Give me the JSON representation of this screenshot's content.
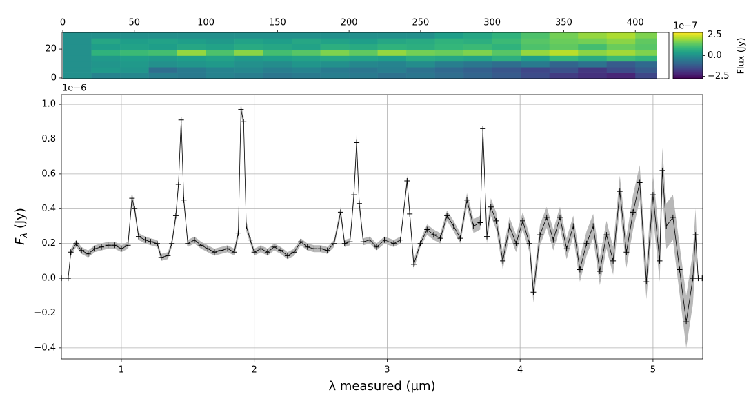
{
  "chart_data": [
    {
      "type": "heatmap",
      "colormap": "viridis",
      "xlim": [
        -0.5,
        423.5
      ],
      "ylim": [
        -0.5,
        31.5
      ],
      "xticks": [
        0,
        50,
        100,
        150,
        200,
        250,
        300,
        350,
        400
      ],
      "yticks": [
        0,
        20
      ],
      "xbins": [
        0,
        20,
        40,
        60,
        80,
        100,
        120,
        140,
        160,
        180,
        200,
        220,
        240,
        260,
        280,
        300,
        320,
        340,
        360,
        380,
        400,
        415
      ],
      "ybins": [
        -0.5,
        3.5,
        7.5,
        11.5,
        15.5,
        19.5,
        23.5,
        27.5,
        31.5
      ],
      "values": [
        [
          0,
          -0.3,
          -0.2,
          -0.4,
          -0.5,
          -0.3,
          -0.4,
          -0.6,
          -0.5,
          -0.4,
          -0.5,
          -0.7,
          -0.6,
          -0.8,
          -1.0,
          -1.2,
          -1.5,
          -1.8,
          -2.0,
          -2.2,
          -1.6
        ],
        [
          0,
          0.2,
          0.1,
          -0.8,
          -0.5,
          -0.3,
          -0.2,
          -0.4,
          -0.3,
          -0.5,
          -0.6,
          -0.4,
          -0.7,
          -0.9,
          -1.1,
          -1.3,
          -1.6,
          -1.4,
          -1.9,
          -1.5,
          -1.2
        ],
        [
          0,
          0.1,
          0.2,
          0.0,
          0.1,
          0.2,
          0.0,
          -0.1,
          0.1,
          0.0,
          -0.2,
          -0.3,
          -0.1,
          -0.4,
          -0.6,
          -0.8,
          -0.5,
          -1.0,
          -0.7,
          -1.2,
          -0.9
        ],
        [
          0,
          0.2,
          0.3,
          0.2,
          0.3,
          0.4,
          0.2,
          0.3,
          0.4,
          0.5,
          0.4,
          0.3,
          0.6,
          0.5,
          0.4,
          0.7,
          0.3,
          0.9,
          0.6,
          1.0,
          0.8
        ],
        [
          0,
          0.8,
          1.0,
          1.1,
          1.9,
          1.2,
          1.8,
          1.1,
          1.3,
          1.7,
          1.4,
          1.9,
          1.6,
          1.5,
          1.7,
          1.3,
          1.9,
          2.2,
          1.8,
          2.0,
          1.7
        ],
        [
          0,
          0.3,
          0.4,
          0.3,
          0.5,
          0.4,
          0.6,
          0.5,
          0.4,
          0.7,
          0.6,
          0.8,
          0.7,
          0.9,
          1.0,
          0.8,
          1.2,
          1.4,
          1.1,
          1.5,
          1.3
        ],
        [
          0,
          0.5,
          0.3,
          0.4,
          0.3,
          0.2,
          0.4,
          0.3,
          0.5,
          0.4,
          0.3,
          0.5,
          0.6,
          0.8,
          0.7,
          1.0,
          1.3,
          1.5,
          1.6,
          1.8,
          1.4
        ],
        [
          0,
          0,
          0,
          0,
          0,
          0,
          0,
          0,
          0,
          0,
          0,
          0,
          0,
          0.3,
          0.5,
          0.8,
          1.2,
          1.6,
          1.9,
          2.1,
          1.7
        ]
      ],
      "clim": [
        -2.8,
        2.8
      ],
      "cticks": [
        2.5,
        {
          "value": 0,
          "label": "0.0"
        },
        {
          "value": -2.5,
          "label": "−2.5"
        }
      ],
      "colorbar_label": "Flux (Jy)",
      "colorbar_offset": "1e−7"
    },
    {
      "type": "line",
      "color": "#000000",
      "band_color": "#b0b0b0",
      "marker": "+",
      "grid": true,
      "xlabel": "λ measured (µm)",
      "ylabel": {
        "main": "F",
        "sub": "λ",
        "rest": " (Jy)"
      },
      "y_offset": "1e−6",
      "xlim": [
        0.549,
        5.374
      ],
      "ylim": [
        -0.464,
        1.056
      ],
      "xticks": [
        1,
        2,
        3,
        4,
        5
      ],
      "yticks": [
        {
          "value": -0.4,
          "label": "−0.4"
        },
        {
          "value": -0.2,
          "label": "−0.2"
        },
        {
          "value": 0,
          "label": "0.0"
        },
        0.2,
        0.4,
        0.6,
        0.8,
        {
          "value": 1,
          "label": "1.0"
        }
      ],
      "x": [
        0.55,
        0.6,
        0.62,
        0.66,
        0.7,
        0.75,
        0.8,
        0.85,
        0.9,
        0.95,
        1.0,
        1.05,
        1.08,
        1.1,
        1.13,
        1.18,
        1.22,
        1.27,
        1.3,
        1.35,
        1.38,
        1.41,
        1.43,
        1.45,
        1.47,
        1.5,
        1.55,
        1.6,
        1.65,
        1.7,
        1.75,
        1.8,
        1.85,
        1.88,
        1.9,
        1.92,
        1.94,
        1.97,
        2.0,
        2.05,
        2.1,
        2.15,
        2.2,
        2.25,
        2.3,
        2.35,
        2.4,
        2.45,
        2.5,
        2.55,
        2.6,
        2.65,
        2.68,
        2.72,
        2.75,
        2.77,
        2.79,
        2.82,
        2.87,
        2.92,
        2.98,
        3.05,
        3.1,
        3.15,
        3.17,
        3.2,
        3.25,
        3.3,
        3.35,
        3.4,
        3.45,
        3.5,
        3.55,
        3.6,
        3.65,
        3.7,
        3.72,
        3.75,
        3.78,
        3.82,
        3.87,
        3.92,
        3.97,
        4.02,
        4.07,
        4.1,
        4.15,
        4.2,
        4.25,
        4.3,
        4.35,
        4.4,
        4.45,
        4.5,
        4.55,
        4.6,
        4.65,
        4.7,
        4.75,
        4.8,
        4.85,
        4.9,
        4.95,
        5.0,
        5.05,
        5.07,
        5.1,
        5.15,
        5.2,
        5.25,
        5.3,
        5.32,
        5.34,
        5.37
      ],
      "values": [
        0,
        0,
        0.15,
        0.2,
        0.16,
        0.14,
        0.17,
        0.18,
        0.19,
        0.19,
        0.17,
        0.19,
        0.46,
        0.4,
        0.24,
        0.22,
        0.21,
        0.2,
        0.12,
        0.13,
        0.2,
        0.36,
        0.54,
        0.91,
        0.45,
        0.2,
        0.22,
        0.19,
        0.17,
        0.15,
        0.16,
        0.17,
        0.15,
        0.26,
        0.97,
        0.9,
        0.3,
        0.22,
        0.15,
        0.17,
        0.15,
        0.18,
        0.16,
        0.13,
        0.15,
        0.21,
        0.18,
        0.17,
        0.17,
        0.16,
        0.2,
        0.38,
        0.2,
        0.21,
        0.48,
        0.78,
        0.43,
        0.21,
        0.22,
        0.18,
        0.22,
        0.2,
        0.22,
        0.56,
        0.37,
        0.08,
        0.2,
        0.28,
        0.25,
        0.23,
        0.36,
        0.3,
        0.23,
        0.45,
        0.3,
        0.32,
        0.86,
        0.24,
        0.41,
        0.33,
        0.1,
        0.3,
        0.2,
        0.33,
        0.2,
        -0.08,
        0.25,
        0.35,
        0.22,
        0.35,
        0.17,
        0.3,
        0.05,
        0.2,
        0.3,
        0.04,
        0.25,
        0.1,
        0.5,
        0.15,
        0.38,
        0.55,
        -0.02,
        0.48,
        0.1,
        0.62,
        0.3,
        0.35,
        0.05,
        -0.25,
        0,
        0.25,
        0,
        0
      ],
      "errors": [
        0,
        0,
        0.02,
        0.02,
        0.02,
        0.02,
        0.02,
        0.02,
        0.02,
        0.02,
        0.02,
        0.02,
        0.03,
        0.03,
        0.02,
        0.02,
        0.02,
        0.02,
        0.02,
        0.02,
        0.02,
        0.03,
        0.03,
        0.03,
        0.03,
        0.02,
        0.02,
        0.02,
        0.02,
        0.02,
        0.02,
        0.02,
        0.02,
        0.03,
        0.03,
        0.03,
        0.03,
        0.02,
        0.02,
        0.02,
        0.02,
        0.02,
        0.02,
        0.02,
        0.02,
        0.02,
        0.02,
        0.02,
        0.02,
        0.02,
        0.02,
        0.03,
        0.02,
        0.02,
        0.04,
        0.05,
        0.04,
        0.02,
        0.02,
        0.02,
        0.02,
        0.02,
        0.02,
        0.03,
        0.03,
        0.03,
        0.02,
        0.03,
        0.03,
        0.03,
        0.03,
        0.03,
        0.03,
        0.04,
        0.04,
        0.04,
        0.05,
        0.04,
        0.05,
        0.05,
        0.05,
        0.05,
        0.05,
        0.05,
        0.05,
        0.06,
        0.06,
        0.06,
        0.06,
        0.06,
        0.06,
        0.06,
        0.07,
        0.07,
        0.07,
        0.08,
        0.08,
        0.08,
        0.09,
        0.09,
        0.1,
        0.1,
        0.1,
        0.12,
        0.12,
        0.13,
        0.13,
        0.13,
        0.14,
        0.15,
        0.15,
        0.15,
        0,
        0
      ]
    }
  ]
}
